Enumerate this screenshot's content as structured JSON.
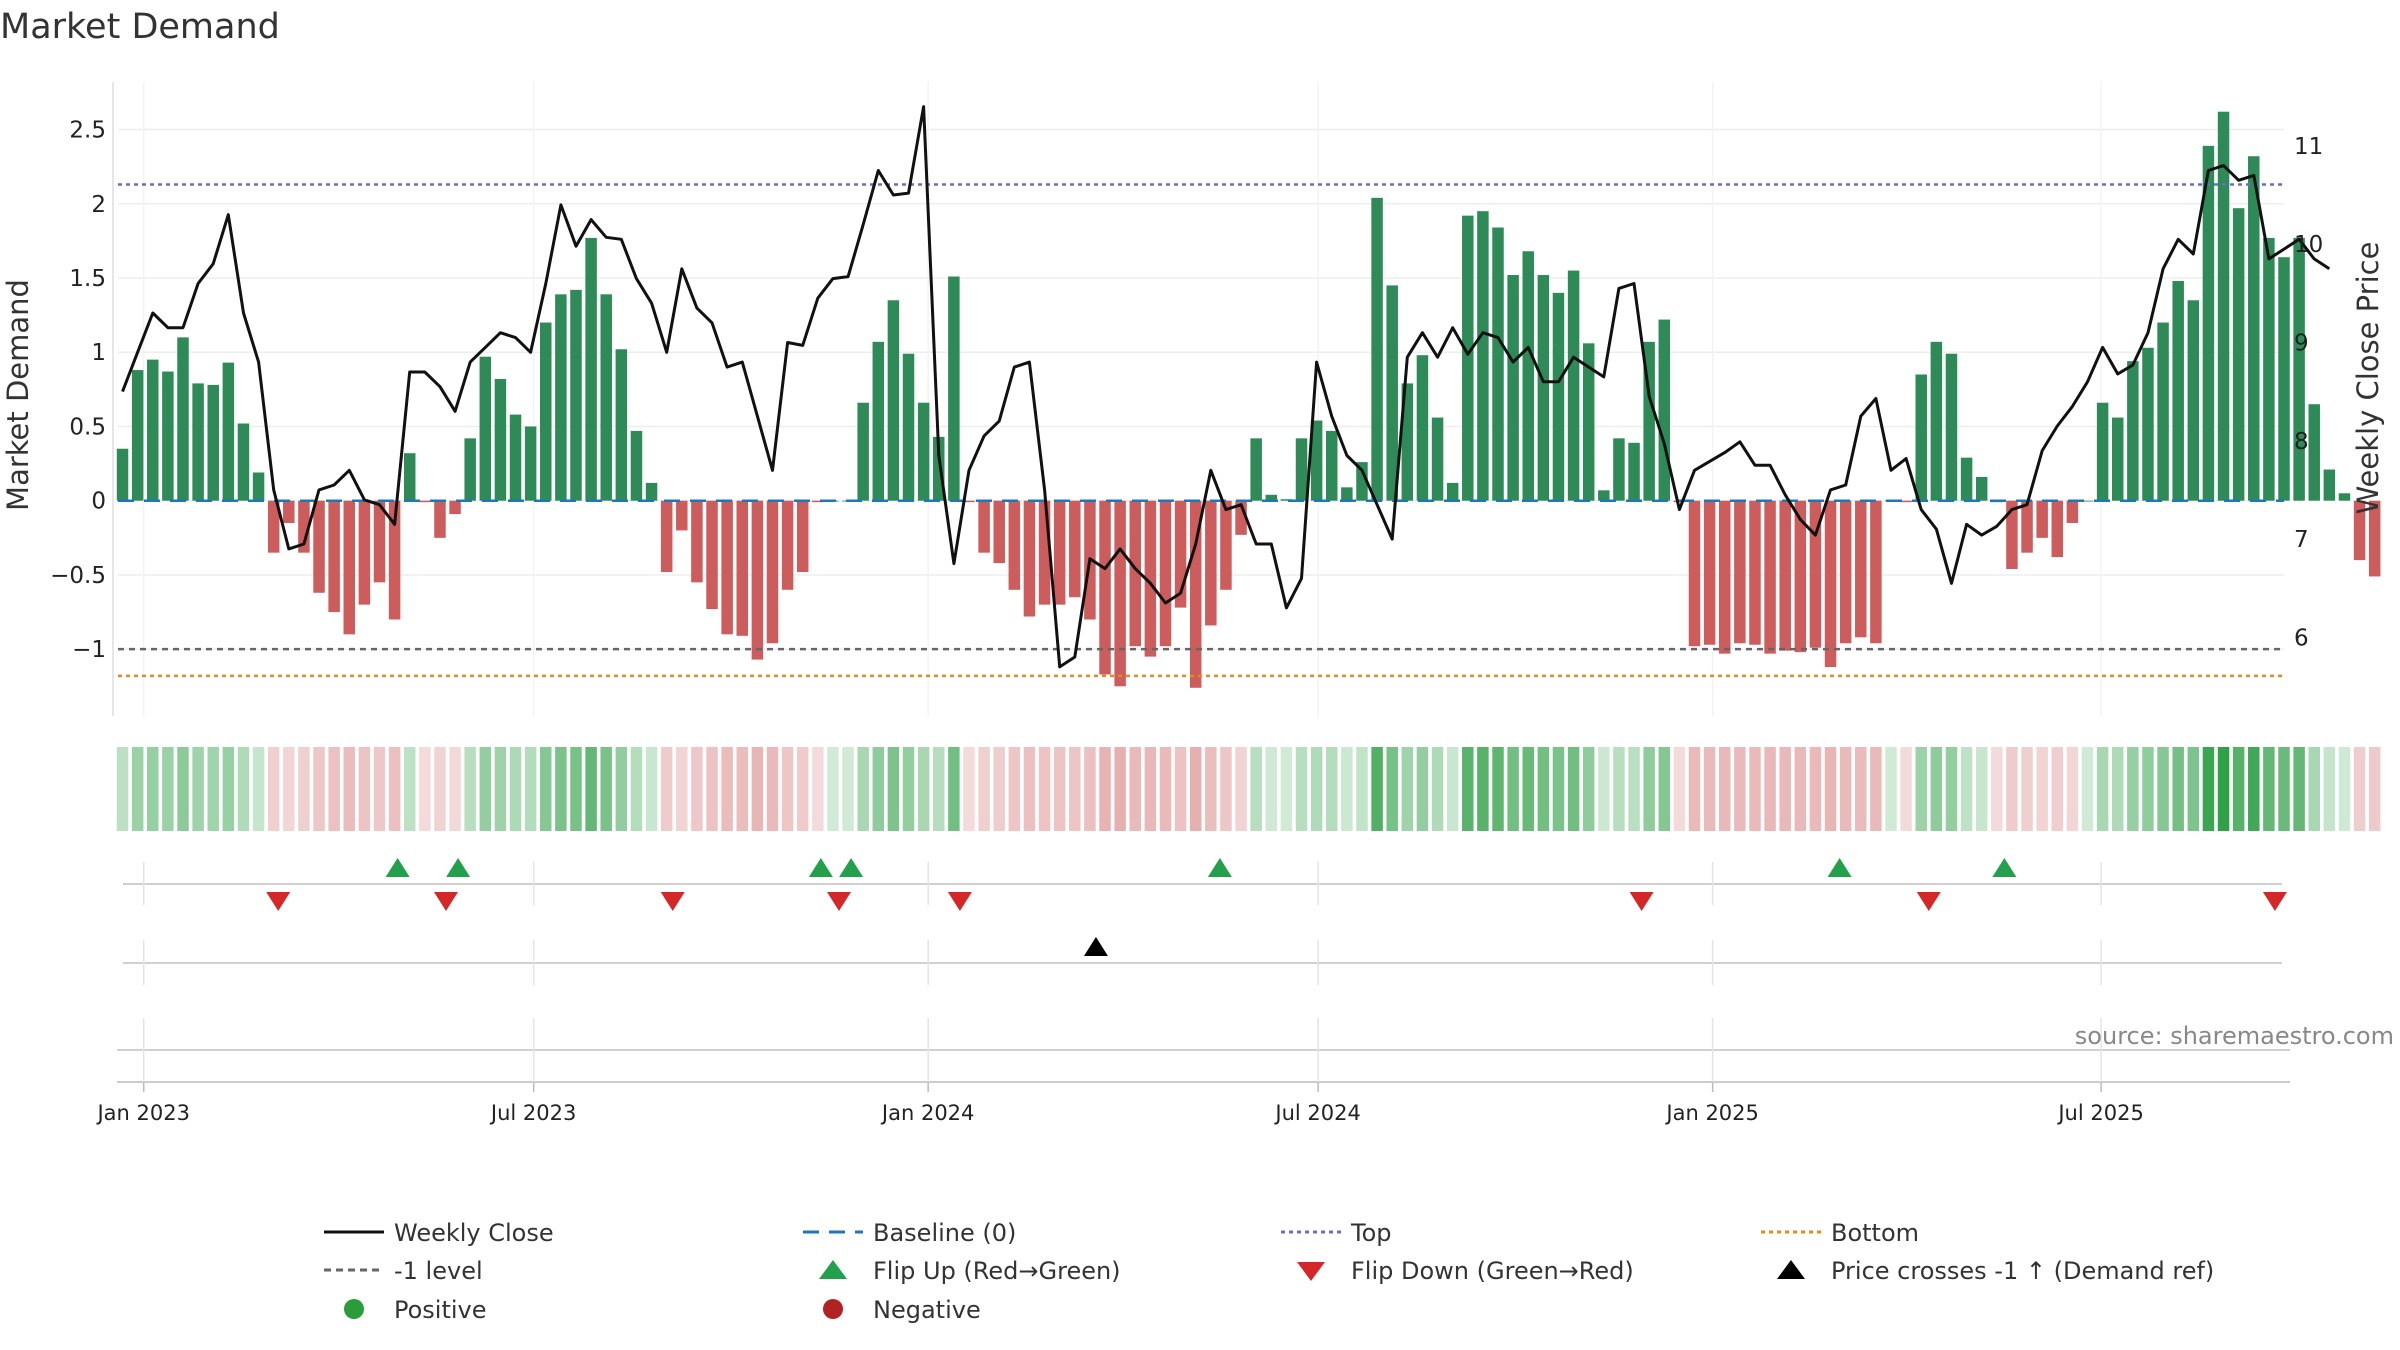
{
  "chart_data": {
    "type": "bar",
    "title": "Market Demand",
    "ylabel": "Market Demand",
    "ylabel_right": "Weekly Close Price",
    "ylim": [
      -1.45,
      2.82
    ],
    "ylim_right": [
      5.2,
      11.65
    ],
    "y_ticks": [
      {
        "v": 2.5,
        "label": "2.5"
      },
      {
        "v": 2,
        "label": "2"
      },
      {
        "v": 1.5,
        "label": "1.5"
      },
      {
        "v": 1,
        "label": "1"
      },
      {
        "v": 0.5,
        "label": "0.5"
      },
      {
        "v": 0,
        "label": "0"
      },
      {
        "v": -0.5,
        "label": "−0.5"
      },
      {
        "v": -1,
        "label": "−1"
      }
    ],
    "y_right_ticks": [
      {
        "v": 11,
        "label": "11"
      },
      {
        "v": 10,
        "label": "10"
      },
      {
        "v": 9,
        "label": "9"
      },
      {
        "v": 8,
        "label": "8"
      },
      {
        "v": 7,
        "label": "7"
      },
      {
        "v": 6,
        "label": "6"
      }
    ],
    "x_ticks": [
      {
        "week": 1.4,
        "label": "Jan 2023"
      },
      {
        "week": 27.2,
        "label": "Jul 2023"
      },
      {
        "week": 53.3,
        "label": "Jan 2024"
      },
      {
        "week": 79.1,
        "label": "Jul 2024"
      },
      {
        "week": 105.2,
        "label": "Jan 2025"
      },
      {
        "week": 130.9,
        "label": "Jul 2025"
      }
    ],
    "week_range": [
      -0.3,
      143
    ],
    "levels": {
      "top": 2.13,
      "minus_one": -1.0,
      "bottom": -1.18,
      "baseline": 0
    },
    "demand": [
      0.35,
      0.88,
      0.95,
      0.87,
      1.1,
      0.79,
      0.78,
      0.93,
      0.52,
      0.19,
      -0.35,
      -0.15,
      -0.35,
      -0.62,
      -0.75,
      -0.9,
      -0.7,
      -0.55,
      -0.8,
      0.32,
      -0.01,
      -0.25,
      -0.09,
      0.42,
      0.97,
      0.82,
      0.58,
      0.5,
      1.2,
      1.39,
      1.42,
      1.77,
      1.39,
      1.02,
      0.47,
      0.12,
      -0.48,
      -0.2,
      -0.55,
      -0.73,
      -0.9,
      -0.91,
      -1.07,
      -0.96,
      -0.6,
      -0.48,
      -0.01,
      0.0,
      0.0,
      0.66,
      1.07,
      1.35,
      0.99,
      0.66,
      0.43,
      1.51,
      -0.01,
      -0.35,
      -0.42,
      -0.6,
      -0.78,
      -0.7,
      -0.7,
      -0.65,
      -0.8,
      -1.17,
      -1.25,
      -0.98,
      -1.05,
      -0.98,
      -0.72,
      -1.26,
      -0.84,
      -0.6,
      -0.23,
      0.42,
      0.04,
      0.01,
      0.42,
      0.54,
      0.47,
      0.09,
      0.26,
      2.04,
      1.45,
      0.79,
      0.98,
      0.56,
      0.12,
      1.92,
      1.95,
      1.84,
      1.52,
      1.68,
      1.52,
      1.4,
      1.55,
      1.06,
      0.07,
      0.42,
      0.39,
      1.07,
      1.22,
      -0.01,
      -0.98,
      -0.97,
      -1.03,
      -0.96,
      -0.97,
      -1.03,
      -1.01,
      -1.02,
      -0.99,
      -1.12,
      -0.96,
      -0.92,
      -0.96,
      0.0,
      -0.01,
      0.85,
      1.07,
      0.99,
      0.29,
      0.16,
      -0.01,
      -0.46,
      -0.35,
      -0.25,
      -0.38,
      -0.15,
      0.0,
      0.66,
      0.56,
      0.94,
      1.03,
      1.2,
      1.48,
      1.35,
      2.39,
      2.62,
      1.97,
      2.32,
      1.77,
      1.64,
      1.77,
      0.65,
      0.21,
      0.05,
      -0.4,
      -0.51
    ],
    "weekly_close": [
      8.5,
      8.9,
      9.3,
      9.15,
      9.15,
      9.6,
      9.8,
      10.3,
      9.3,
      8.8,
      7.5,
      6.9,
      6.95,
      7.5,
      7.55,
      7.7,
      7.4,
      7.35,
      7.15,
      8.7,
      8.7,
      8.55,
      8.3,
      8.8,
      8.95,
      9.1,
      9.05,
      8.9,
      9.6,
      10.4,
      9.98,
      10.25,
      10.07,
      10.05,
      9.65,
      9.4,
      8.9,
      9.75,
      9.35,
      9.2,
      8.75,
      8.8,
      8.25,
      7.7,
      9.0,
      8.97,
      9.45,
      9.65,
      9.67,
      10.2,
      10.75,
      10.5,
      10.52,
      11.4,
      7.85,
      6.75,
      7.7,
      8.05,
      8.2,
      8.75,
      8.8,
      7.5,
      5.7,
      5.8,
      6.8,
      6.7,
      6.9,
      6.7,
      6.55,
      6.35,
      6.45,
      6.95,
      7.7,
      7.3,
      7.35,
      6.95,
      6.95,
      6.3,
      6.6,
      8.8,
      8.25,
      7.85,
      7.7,
      7.35,
      7.0,
      8.85,
      9.1,
      8.85,
      9.15,
      8.88,
      9.1,
      9.05,
      8.8,
      8.95,
      8.6,
      8.6,
      8.85,
      8.75,
      8.65,
      9.55,
      9.6,
      8.45,
      7.97,
      7.3,
      7.7,
      7.79,
      7.88,
      7.99,
      7.75,
      7.75,
      7.45,
      7.2,
      7.04,
      7.5,
      7.55,
      8.25,
      8.43,
      7.7,
      7.82,
      7.3,
      7.1,
      6.55,
      7.15,
      7.04,
      7.13,
      7.3,
      7.35,
      7.9,
      8.15,
      8.35,
      8.6,
      8.95,
      8.68,
      8.77,
      9.1,
      9.75,
      10.05,
      9.9,
      10.75,
      10.8,
      10.65,
      10.7,
      9.85,
      9.95,
      10.05,
      9.85,
      9.75
    ],
    "flip_up": [
      18.2,
      22.2,
      46.2,
      48.2,
      72.6,
      113.6,
      124.5
    ],
    "flip_down": [
      10.3,
      21.4,
      36.4,
      47.4,
      55.4,
      100.5,
      119.5,
      142.4
    ],
    "price_cross": [
      64.4
    ],
    "source": "source: sharemaestro.com"
  },
  "legend": {
    "weekly_close": "Weekly Close",
    "baseline": "Baseline (0)",
    "top": "Top",
    "bottom": "Bottom",
    "minus_one": "-1 level",
    "flip_up": "Flip Up (Red→Green)",
    "flip_down": "Flip Down (Green→Red)",
    "price_cross": "Price crosses -1 ↑ (Demand ref)",
    "positive": "Positive",
    "negative": "Negative"
  },
  "colors": {
    "positive": "#2e8b57",
    "negative": "#cd5c5c",
    "line": "#111111",
    "baseline": "#1f77b4",
    "top": "#6b6bc8",
    "minus_one": "#666666",
    "bottom": "#e8891a",
    "flip_up": "#22a04b",
    "flip_down": "#d62728",
    "cross": "#000000",
    "legend_positive": "#2a9d3a",
    "legend_negative": "#b22222"
  }
}
